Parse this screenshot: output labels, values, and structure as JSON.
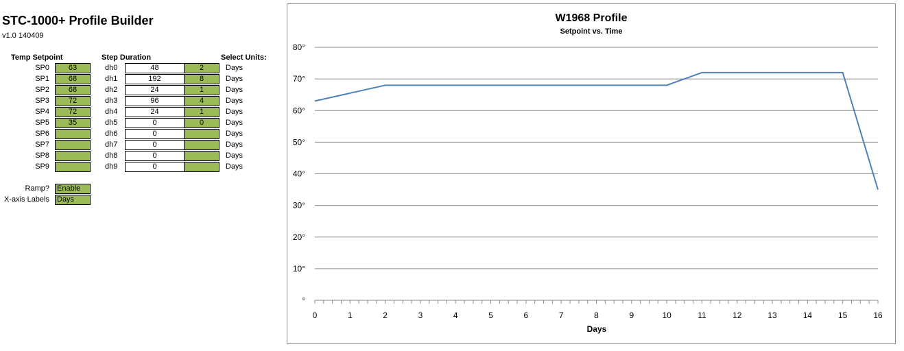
{
  "app": {
    "title": "STC-1000+ Profile Builder",
    "version": "v1.0 140409"
  },
  "table": {
    "headers": {
      "temp": "Temp Setpoint",
      "duration": "Step Duration",
      "units": "Select Units:"
    },
    "rows": [
      {
        "sp": "SP0",
        "setpoint": "63",
        "dh": "dh0",
        "hours": "48",
        "count": "2",
        "unit": "Days"
      },
      {
        "sp": "SP1",
        "setpoint": "68",
        "dh": "dh1",
        "hours": "192",
        "count": "8",
        "unit": "Days"
      },
      {
        "sp": "SP2",
        "setpoint": "68",
        "dh": "dh2",
        "hours": "24",
        "count": "1",
        "unit": "Days"
      },
      {
        "sp": "SP3",
        "setpoint": "72",
        "dh": "dh3",
        "hours": "96",
        "count": "4",
        "unit": "Days"
      },
      {
        "sp": "SP4",
        "setpoint": "72",
        "dh": "dh4",
        "hours": "24",
        "count": "1",
        "unit": "Days"
      },
      {
        "sp": "SP5",
        "setpoint": "35",
        "dh": "dh5",
        "hours": "0",
        "count": "0",
        "unit": "Days"
      },
      {
        "sp": "SP6",
        "setpoint": "",
        "dh": "dh6",
        "hours": "0",
        "count": "",
        "unit": "Days"
      },
      {
        "sp": "SP7",
        "setpoint": "",
        "dh": "dh7",
        "hours": "0",
        "count": "",
        "unit": "Days"
      },
      {
        "sp": "SP8",
        "setpoint": "",
        "dh": "dh8",
        "hours": "0",
        "count": "",
        "unit": "Days"
      },
      {
        "sp": "SP9",
        "setpoint": "",
        "dh": "dh9",
        "hours": "0",
        "count": "",
        "unit": "Days"
      }
    ]
  },
  "options": {
    "ramp_label": "Ramp?",
    "ramp_value": "Enable",
    "xaxis_label": "X-axis Labels",
    "xaxis_value": "Days"
  },
  "colors": {
    "cell_green": "#9bbb59",
    "line": "#4f81bd",
    "grid": "#8c8c8c"
  },
  "chart_data": {
    "type": "line",
    "title": "W1968 Profile",
    "subtitle": "Setpoint vs. Time",
    "xlabel": "Days",
    "ylabel": "",
    "xlim": [
      0,
      16
    ],
    "ylim": [
      0,
      80
    ],
    "x_ticks": [
      "0",
      "1",
      "2",
      "3",
      "4",
      "5",
      "6",
      "7",
      "8",
      "9",
      "10",
      "11",
      "12",
      "13",
      "14",
      "15",
      "16"
    ],
    "y_ticks": [
      "°",
      "10°",
      "20°",
      "30°",
      "40°",
      "50°",
      "60°",
      "70°",
      "80°"
    ],
    "grid": true,
    "legend": "none",
    "series": [
      {
        "x": [
          0,
          2,
          10,
          11,
          15,
          16
        ],
        "y": [
          63,
          68,
          68,
          72,
          72,
          35
        ]
      }
    ]
  }
}
